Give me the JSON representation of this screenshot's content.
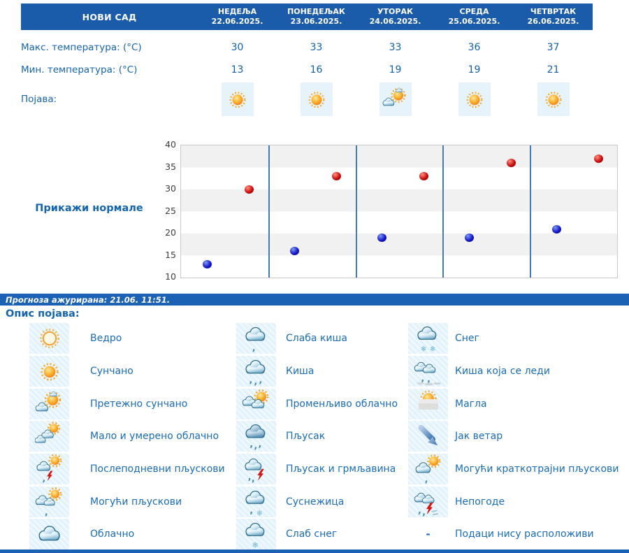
{
  "header": {
    "city": "НОВИ САД",
    "days": [
      {
        "name": "НЕДЕЉА",
        "date": "22.06.2025."
      },
      {
        "name": "ПОНЕДЕЉАК",
        "date": "23.06.2025."
      },
      {
        "name": "УТОРАК",
        "date": "24.06.2025."
      },
      {
        "name": "СРЕДА",
        "date": "25.06.2025."
      },
      {
        "name": "ЧЕТВРТАК",
        "date": "26.06.2025."
      }
    ]
  },
  "table": {
    "max_label": "Макс. температура: (°C)",
    "min_label": "Мин. температура: (°C)",
    "phenomena_label": "Појава:",
    "max_values": [
      "30",
      "33",
      "33",
      "36",
      "37"
    ],
    "min_values": [
      "13",
      "16",
      "19",
      "19",
      "21"
    ],
    "phenomena_icons": [
      "sunny",
      "sunny",
      "partly-sunny",
      "sunny",
      "sunny"
    ]
  },
  "chart": {
    "normals_link": "Прикажи нормале"
  },
  "chart_data": {
    "type": "scatter",
    "categories": [
      "22.06.2025.",
      "23.06.2025.",
      "24.06.2025.",
      "25.06.2025.",
      "26.06.2025."
    ],
    "series": [
      {
        "name": "Макс. температура (°C)",
        "color": "#cc0d0d",
        "values": [
          30,
          33,
          33,
          36,
          37
        ]
      },
      {
        "name": "Мин. температура (°C)",
        "color": "#1717cc",
        "values": [
          13,
          16,
          19,
          19,
          21
        ]
      }
    ],
    "ylim": [
      10,
      40
    ],
    "yticks": [
      10,
      15,
      20,
      25,
      30,
      35,
      40
    ],
    "grid": "horizontal-bands",
    "legend_position": "none",
    "title": "",
    "xlabel": "",
    "ylabel": ""
  },
  "status_bar": {
    "text": "Прогноза ажурирана:  21.06. 11:51."
  },
  "legend": {
    "title": "Опис појава:",
    "columns": [
      [
        {
          "icon": "clear",
          "label": "Ведро"
        },
        {
          "icon": "sunny",
          "label": "Сунчано"
        },
        {
          "icon": "partly-sunny",
          "label": "Претежно сунчано"
        },
        {
          "icon": "mostly-cloudy",
          "label": "Мало и умерено облачно"
        },
        {
          "icon": "afternoon-showers",
          "label": "Послеподневни пљускови"
        },
        {
          "icon": "possible-showers",
          "label": "Могући пљускови"
        },
        {
          "icon": "cloudy",
          "label": "Облачно"
        }
      ],
      [
        {
          "icon": "light-rain",
          "label": "Слаба киша"
        },
        {
          "icon": "rain",
          "label": "Киша"
        },
        {
          "icon": "variable-clouds",
          "label": "Променљиво облачно"
        },
        {
          "icon": "shower",
          "label": "Пљусак"
        },
        {
          "icon": "shower-thunder",
          "label": "Пљусак и грмљавина"
        },
        {
          "icon": "sleet",
          "label": "Суснежица"
        },
        {
          "icon": "light-snow",
          "label": "Слаб снег"
        }
      ],
      [
        {
          "icon": "snow",
          "label": "Снег"
        },
        {
          "icon": "freezing-rain",
          "label": "Киша која се леди"
        },
        {
          "icon": "fog",
          "label": "Магла"
        },
        {
          "icon": "strong-wind",
          "label": "Јак ветар"
        },
        {
          "icon": "possible-brief-showers",
          "label": "Могући краткотрајни пљускови"
        },
        {
          "icon": "storms",
          "label": "Непогоде"
        },
        {
          "icon": "no-data",
          "label": "Подаци нису расположиви",
          "dash": "-"
        }
      ]
    ]
  },
  "colors": {
    "header_bg": "#1b5caa",
    "status_bg": "#1b62b4",
    "text_blue": "#1565ae",
    "legend_text": "#1a6cb5",
    "band_gray": "#f1f1f1",
    "divider_blue": "#4679b8",
    "dot_max": "#cc0d0d",
    "dot_min": "#1717cc",
    "icon_box_bg": "#e7f3fb"
  }
}
